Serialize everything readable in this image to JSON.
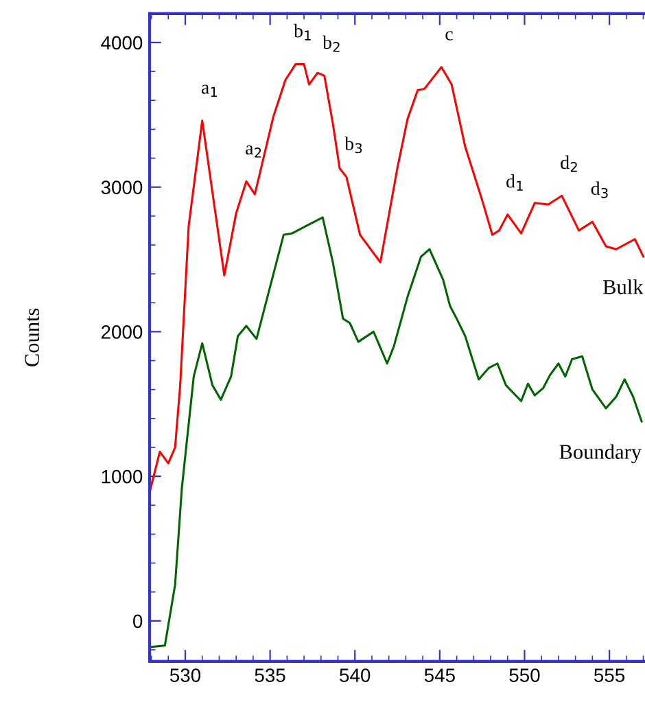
{
  "chart_data": {
    "type": "line",
    "ylabel": "Counts",
    "xlim": [
      527.9,
      557.1
    ],
    "ylim": [
      -280,
      4200
    ],
    "xticks": [
      530,
      535,
      540,
      545,
      550,
      555
    ],
    "yticks": [
      0,
      1000,
      2000,
      3000,
      4000
    ],
    "grid": false,
    "legend": false,
    "marker": "none",
    "line_style": "solid",
    "series": [
      {
        "name": "Bulk",
        "color": "#ff0000",
        "x": [
          527.9,
          528.5,
          529.0,
          529.4,
          529.7,
          530.2,
          531.0,
          532.3,
          533.0,
          533.6,
          534.1,
          535.2,
          535.9,
          536.5,
          537.0,
          537.3,
          537.8,
          538.2,
          538.7,
          539.1,
          539.5,
          540.3,
          541.5,
          542.5,
          543.1,
          543.7,
          544.1,
          544.7,
          545.1,
          545.7,
          546.5,
          547.5,
          548.1,
          548.5,
          549.0,
          549.8,
          550.6,
          551.4,
          552.2,
          553.2,
          554.0,
          554.8,
          555.4,
          556.5,
          557.0
        ],
        "values": [
          890,
          1170,
          1090,
          1200,
          1630,
          2730,
          3460,
          2390,
          2820,
          3040,
          2950,
          3490,
          3740,
          3850,
          3850,
          3710,
          3790,
          3770,
          3440,
          3130,
          3070,
          2670,
          2480,
          3130,
          3470,
          3670,
          3680,
          3770,
          3830,
          3710,
          3280,
          2910,
          2670,
          2700,
          2810,
          2680,
          2890,
          2880,
          2940,
          2700,
          2760,
          2590,
          2570,
          2640,
          2520
        ]
      },
      {
        "name": "Boundary",
        "color": "#006400",
        "x": [
          528.0,
          528.8,
          529.4,
          529.8,
          530.5,
          531.0,
          531.6,
          532.1,
          532.7,
          533.1,
          533.6,
          534.2,
          535.8,
          536.3,
          537.1,
          538.1,
          538.7,
          539.3,
          539.7,
          540.2,
          541.1,
          541.9,
          542.3,
          543.1,
          543.9,
          544.4,
          545.2,
          545.6,
          546.0,
          546.5,
          547.3,
          547.9,
          548.4,
          548.9,
          549.8,
          550.2,
          550.6,
          551.1,
          551.5,
          552.0,
          552.4,
          552.8,
          553.4,
          554.0,
          554.8,
          555.4,
          555.9,
          556.4,
          556.9
        ],
        "values": [
          -180,
          -170,
          250,
          920,
          1690,
          1920,
          1630,
          1530,
          1690,
          1970,
          2040,
          1950,
          2670,
          2680,
          2730,
          2790,
          2480,
          2090,
          2060,
          1930,
          2000,
          1780,
          1900,
          2240,
          2520,
          2570,
          2360,
          2180,
          2090,
          1970,
          1670,
          1750,
          1780,
          1630,
          1520,
          1640,
          1560,
          1610,
          1700,
          1780,
          1690,
          1810,
          1830,
          1600,
          1470,
          1550,
          1670,
          1550,
          1380
        ]
      }
    ],
    "annotations": [
      {
        "text": "a$_{1}$",
        "x": 531.0,
        "y": 3460
      },
      {
        "text": "a$_{2}$",
        "x": 533.6,
        "y": 3040
      },
      {
        "text": "b$_{1}$",
        "x": 536.5,
        "y": 3850
      },
      {
        "text": "b$_{2}$",
        "x": 538.2,
        "y": 3770
      },
      {
        "text": "b$_{3}$",
        "x": 539.5,
        "y": 3070
      },
      {
        "text": "c",
        "x": 545.1,
        "y": 3830
      },
      {
        "text": "d$_{1}$",
        "x": 549.0,
        "y": 2810
      },
      {
        "text": "d$_{2}$",
        "x": 552.2,
        "y": 2940
      },
      {
        "text": "d$_{3}$",
        "x": 554.0,
        "y": 2760
      }
    ]
  }
}
